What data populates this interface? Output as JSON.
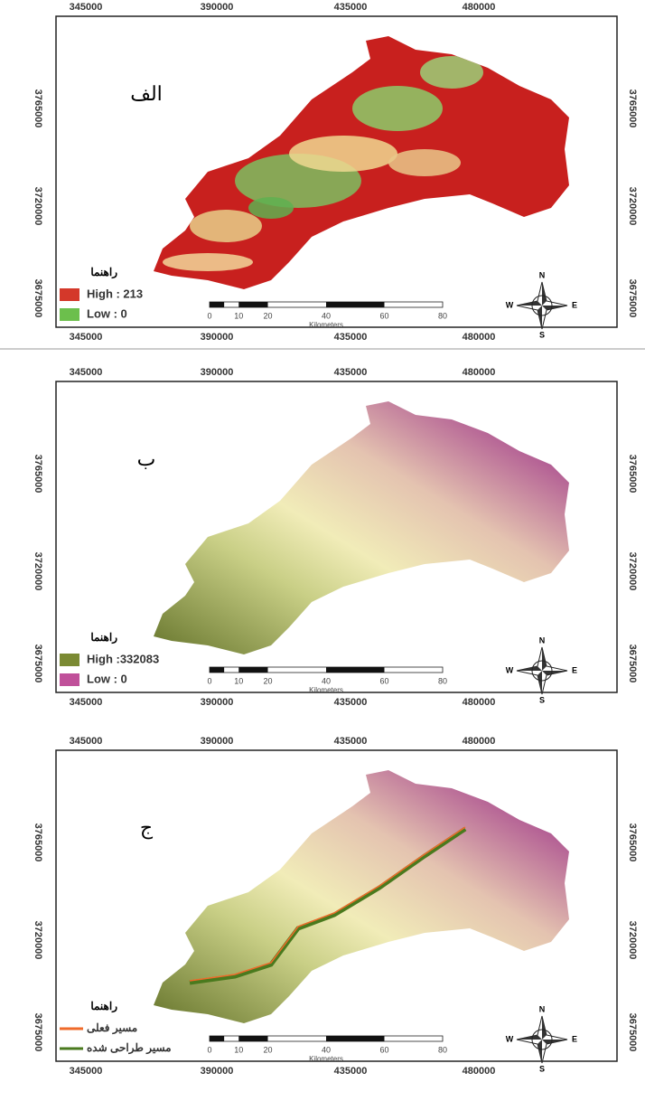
{
  "panels": [
    {
      "label": "الف",
      "top_ticks": [
        345000,
        390000,
        435000,
        480000
      ],
      "bottom_ticks": [
        345000,
        390000,
        435000,
        480000
      ],
      "left_ticks": [
        3765000,
        3720000,
        3675000
      ],
      "right_ticks": [
        3765000,
        3720000,
        3675000
      ],
      "legend": {
        "title": "راهنما",
        "items": [
          "High : 213",
          "Low : 0"
        ]
      },
      "scale": {
        "ticks": [
          0,
          10,
          20,
          40,
          60,
          80
        ],
        "unit": "Kilometers"
      },
      "compass": {
        "n": "N",
        "s": "S",
        "e": "E",
        "w": "W"
      }
    },
    {
      "label": "ب",
      "top_ticks": [
        345000,
        390000,
        435000,
        480000
      ],
      "bottom_ticks": [
        345000,
        390000,
        435000,
        480000
      ],
      "left_ticks": [
        3765000,
        3720000,
        3675000
      ],
      "right_ticks": [
        3765000,
        3720000,
        3675000
      ],
      "legend": {
        "title": "راهنما",
        "items": [
          "High :332083",
          "Low : 0"
        ]
      },
      "scale": {
        "ticks": [
          0,
          10,
          20,
          40,
          60,
          80
        ],
        "unit": "Kilometers"
      },
      "compass": {
        "n": "N",
        "s": "S",
        "e": "E",
        "w": "W"
      }
    },
    {
      "label": "ج",
      "top_ticks": [
        345000,
        390000,
        435000,
        480000
      ],
      "bottom_ticks": [
        345000,
        390000,
        435000,
        480000
      ],
      "left_ticks": [
        3765000,
        3720000,
        3675000
      ],
      "right_ticks": [
        3765000,
        3720000,
        3675000
      ],
      "legend": {
        "title": "راهنما",
        "items": [
          "مسیر فعلی",
          "مسیر طراحی شده"
        ]
      },
      "scale": {
        "ticks": [
          0,
          10,
          20,
          40,
          60,
          80
        ],
        "unit": "Kilometers"
      },
      "compass": {
        "n": "N",
        "s": "S",
        "e": "E",
        "w": "W"
      }
    }
  ]
}
